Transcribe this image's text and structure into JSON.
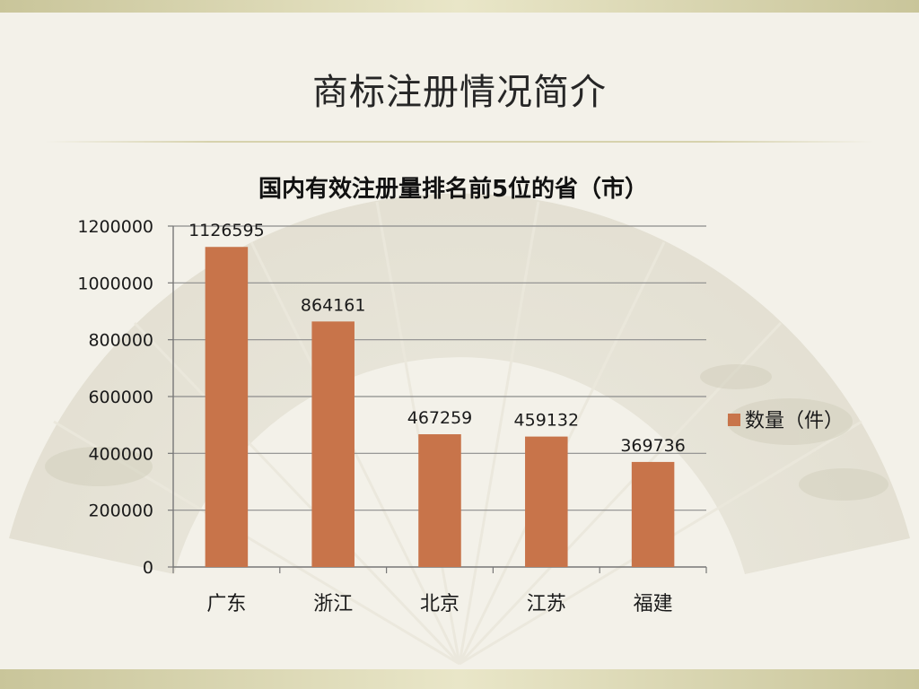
{
  "slide": {
    "title": "商标注册情况简介"
  },
  "chart_data": {
    "type": "bar",
    "title": "国内有效注册量排名前5位的省（市）",
    "categories": [
      "广东",
      "浙江",
      "北京",
      "江苏",
      "福建"
    ],
    "series": [
      {
        "name": "数量（件）",
        "values": [
          1126595,
          864161,
          467259,
          459132,
          369736
        ],
        "color": "#c8744a"
      }
    ],
    "data_labels": [
      "1126595",
      "864161",
      "467259",
      "459132",
      "369736"
    ],
    "yticks": [
      0,
      200000,
      400000,
      600000,
      800000,
      1000000,
      1200000
    ],
    "ylim": [
      0,
      1200000
    ],
    "xlabel": "",
    "ylabel": "",
    "grid": true,
    "legend_position": "right"
  }
}
